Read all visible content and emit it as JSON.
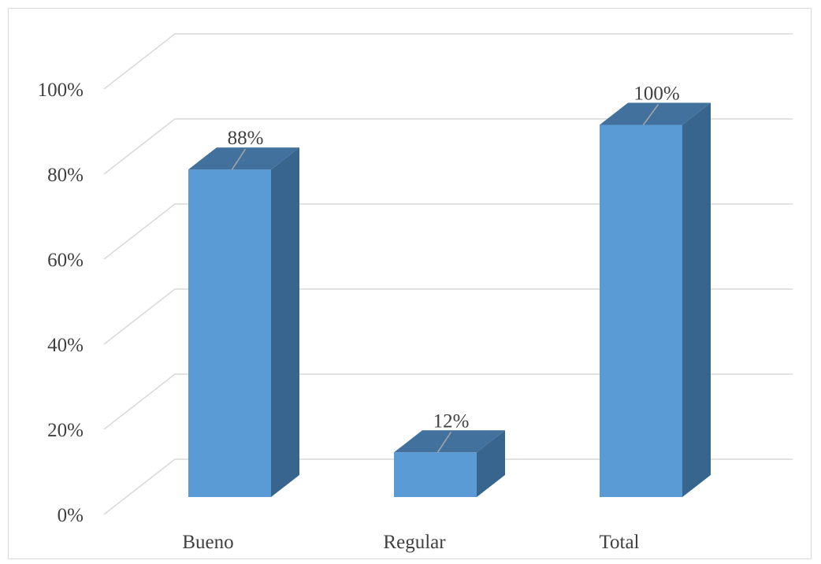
{
  "chart_data": {
    "type": "bar",
    "style": "3d-column",
    "categories": [
      "Bueno",
      "Regular",
      "Total"
    ],
    "values": [
      88,
      12,
      100
    ],
    "data_labels": [
      "88%",
      "12%",
      "100%"
    ],
    "title": "",
    "xlabel": "",
    "ylabel": "",
    "ylim": [
      0,
      100
    ],
    "y_ticks": [
      "0%",
      "20%",
      "40%",
      "60%",
      "80%",
      "100%"
    ],
    "y_tick_values": [
      0,
      20,
      40,
      60,
      80,
      100
    ],
    "grid": true,
    "legend": "none",
    "colors": {
      "bar_front": "#5b9bd5",
      "bar_top": "#41719c",
      "bar_side": "#37658e",
      "grid": "#d9d9d9",
      "text": "#404040"
    }
  }
}
